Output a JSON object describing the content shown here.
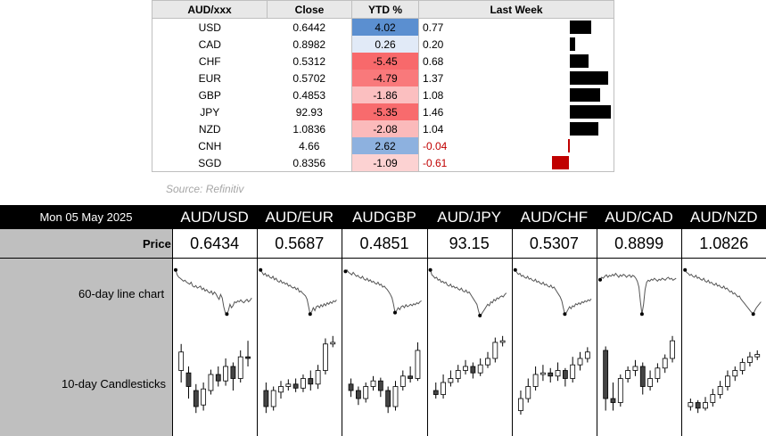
{
  "table": {
    "headers": [
      "AUD/xxx",
      "Close",
      "YTD %",
      "Last Week"
    ],
    "rows": [
      {
        "cur": "USD",
        "close": "0.6442",
        "ytd": "4.02",
        "lw": "0.77"
      },
      {
        "cur": "CAD",
        "close": "0.8982",
        "ytd": "0.26",
        "lw": "0.20"
      },
      {
        "cur": "CHF",
        "close": "0.5312",
        "ytd": "-5.45",
        "lw": "0.68"
      },
      {
        "cur": "EUR",
        "close": "0.5702",
        "ytd": "-4.79",
        "lw": "1.37"
      },
      {
        "cur": "GBP",
        "close": "0.4853",
        "ytd": "-1.86",
        "lw": "1.08"
      },
      {
        "cur": "JPY",
        "close": "92.93",
        "ytd": "-5.35",
        "lw": "1.46"
      },
      {
        "cur": "NZD",
        "close": "1.0836",
        "ytd": "-2.08",
        "lw": "1.04"
      },
      {
        "cur": "CNH",
        "close": "4.66",
        "ytd": "2.62",
        "lw": "-0.04"
      },
      {
        "cur": "SGD",
        "close": "0.8356",
        "ytd": "-1.09",
        "lw": "-0.61"
      }
    ],
    "colors": {
      "positive_strong": "#5b8fd0",
      "negative_strong": "#f8696b",
      "bar_positive": "#000000",
      "bar_negative": "#c00000"
    }
  },
  "source": "Source: Refinitiv",
  "panel": {
    "date": "Mon 05 May 2025",
    "pairs": [
      "AUD/USD",
      "AUD/EUR",
      "AUDGBP",
      "AUD/JPY",
      "AUD/CHF",
      "AUD/CAD",
      "AUD/NZD"
    ],
    "prices": [
      "0.6434",
      "0.5687",
      "0.4851",
      "93.15",
      "0.5307",
      "0.8899",
      "1.0826"
    ],
    "row_labels": {
      "price": "Price",
      "line": "60-day line chart",
      "candle": "10-day Candlesticks"
    }
  },
  "chart_data": [
    {
      "type": "bar",
      "title": "Last Week",
      "categories": [
        "USD",
        "CAD",
        "CHF",
        "EUR",
        "GBP",
        "JPY",
        "NZD",
        "CNH",
        "SGD"
      ],
      "values": [
        0.77,
        0.2,
        0.68,
        1.37,
        1.08,
        1.46,
        1.04,
        -0.04,
        -0.61
      ]
    },
    {
      "type": "line",
      "title": "60-day line chart",
      "series": [
        {
          "name": "AUD/USD",
          "values": [
            0.95,
            0.85,
            0.8,
            0.78,
            0.75,
            0.72,
            0.74,
            0.7,
            0.68,
            0.66,
            0.7,
            0.62,
            0.6,
            0.63,
            0.58,
            0.6,
            0.62,
            0.55,
            0.58,
            0.52,
            0.55,
            0.5,
            0.48,
            0.52,
            0.45,
            0.5,
            0.46,
            0.4,
            0.35,
            0.45,
            0.38,
            0.2,
            0.08,
            0.05,
            0.12,
            0.25,
            0.18,
            0.22,
            0.3,
            0.28,
            0.32,
            0.3,
            0.34,
            0.3,
            0.28,
            0.32,
            0.35,
            0.3,
            0.33,
            0.38
          ]
        },
        {
          "name": "AUD/EUR",
          "values": [
            0.95,
            0.9,
            0.85,
            0.88,
            0.82,
            0.85,
            0.8,
            0.78,
            0.82,
            0.75,
            0.78,
            0.72,
            0.7,
            0.74,
            0.68,
            0.7,
            0.66,
            0.68,
            0.62,
            0.64,
            0.6,
            0.58,
            0.6,
            0.55,
            0.58,
            0.5,
            0.52,
            0.48,
            0.45,
            0.42,
            0.35,
            0.2,
            0.05,
            0.1,
            0.18,
            0.12,
            0.2,
            0.22,
            0.18,
            0.24,
            0.2,
            0.26,
            0.22,
            0.28,
            0.25,
            0.3,
            0.27,
            0.32,
            0.3,
            0.34
          ]
        },
        {
          "name": "AUDGBP",
          "values": [
            0.92,
            0.95,
            0.9,
            0.88,
            0.85,
            0.9,
            0.86,
            0.82,
            0.84,
            0.8,
            0.78,
            0.82,
            0.76,
            0.74,
            0.78,
            0.72,
            0.75,
            0.7,
            0.72,
            0.68,
            0.66,
            0.7,
            0.64,
            0.66,
            0.6,
            0.62,
            0.58,
            0.55,
            0.5,
            0.45,
            0.38,
            0.25,
            0.08,
            0.12,
            0.18,
            0.14,
            0.2,
            0.22,
            0.18,
            0.24,
            0.2,
            0.22,
            0.25,
            0.22,
            0.26,
            0.24,
            0.28,
            0.26,
            0.3,
            0.32
          ]
        },
        {
          "name": "AUD/JPY",
          "values": [
            0.95,
            0.85,
            0.82,
            0.78,
            0.8,
            0.74,
            0.76,
            0.7,
            0.72,
            0.68,
            0.7,
            0.64,
            0.62,
            0.66,
            0.6,
            0.62,
            0.58,
            0.6,
            0.56,
            0.54,
            0.58,
            0.52,
            0.5,
            0.54,
            0.48,
            0.5,
            0.45,
            0.4,
            0.35,
            0.3,
            0.25,
            0.12,
            0.02,
            0.05,
            0.1,
            0.15,
            0.2,
            0.25,
            0.22,
            0.3,
            0.28,
            0.35,
            0.32,
            0.38,
            0.36,
            0.4,
            0.42,
            0.4,
            0.45,
            0.48
          ]
        },
        {
          "name": "AUD/CHF",
          "values": [
            0.95,
            0.9,
            0.86,
            0.88,
            0.82,
            0.84,
            0.8,
            0.78,
            0.82,
            0.76,
            0.78,
            0.74,
            0.72,
            0.76,
            0.7,
            0.72,
            0.68,
            0.66,
            0.7,
            0.64,
            0.66,
            0.62,
            0.6,
            0.64,
            0.58,
            0.6,
            0.55,
            0.5,
            0.45,
            0.4,
            0.32,
            0.18,
            0.05,
            0.08,
            0.14,
            0.2,
            0.16,
            0.22,
            0.2,
            0.26,
            0.24,
            0.28,
            0.25,
            0.3,
            0.28,
            0.32,
            0.3,
            0.34,
            0.32,
            0.36
          ]
        },
        {
          "name": "AUD/CAD",
          "values": [
            0.75,
            0.8,
            0.78,
            0.82,
            0.85,
            0.8,
            0.84,
            0.82,
            0.86,
            0.83,
            0.88,
            0.84,
            0.8,
            0.85,
            0.82,
            0.86,
            0.84,
            0.8,
            0.83,
            0.85,
            0.8,
            0.84,
            0.82,
            0.78,
            0.72,
            0.6,
            0.3,
            0.05,
            0.25,
            0.55,
            0.7,
            0.74,
            0.72,
            0.76,
            0.74,
            0.78,
            0.75,
            0.72,
            0.76,
            0.74,
            0.78,
            0.76,
            0.74,
            0.78,
            0.8,
            0.76,
            0.78,
            0.74,
            0.76,
            0.78
          ]
        },
        {
          "name": "AUD/NZD",
          "values": [
            0.95,
            0.9,
            0.88,
            0.84,
            0.86,
            0.82,
            0.8,
            0.84,
            0.78,
            0.8,
            0.76,
            0.74,
            0.78,
            0.72,
            0.7,
            0.74,
            0.68,
            0.7,
            0.66,
            0.64,
            0.68,
            0.62,
            0.64,
            0.6,
            0.58,
            0.62,
            0.56,
            0.58,
            0.54,
            0.5,
            0.52,
            0.46,
            0.48,
            0.44,
            0.4,
            0.42,
            0.36,
            0.32,
            0.28,
            0.24,
            0.2,
            0.16,
            0.12,
            0.08,
            0.05,
            0.12,
            0.18,
            0.22,
            0.26,
            0.3
          ]
        }
      ]
    },
    {
      "type": "candlestick",
      "title": "10-day Candlesticks",
      "series": [
        {
          "name": "AUD/USD",
          "candles": [
            [
              0.55,
              0.78,
              0.4,
              0.88
            ],
            [
              0.52,
              0.35,
              0.2,
              0.6
            ],
            [
              0.3,
              0.1,
              0.02,
              0.38
            ],
            [
              0.12,
              0.32,
              0.05,
              0.4
            ],
            [
              0.3,
              0.5,
              0.25,
              0.56
            ],
            [
              0.5,
              0.42,
              0.35,
              0.6
            ],
            [
              0.42,
              0.6,
              0.36,
              0.7
            ],
            [
              0.6,
              0.45,
              0.3,
              0.65
            ],
            [
              0.45,
              0.72,
              0.4,
              0.8
            ],
            [
              0.72,
              0.7,
              0.6,
              0.92
            ]
          ]
        },
        {
          "name": "AUD/EUR",
          "candles": [
            [
              0.3,
              0.1,
              0.02,
              0.4
            ],
            [
              0.1,
              0.3,
              0.05,
              0.35
            ],
            [
              0.28,
              0.35,
              0.2,
              0.42
            ],
            [
              0.35,
              0.38,
              0.3,
              0.44
            ],
            [
              0.38,
              0.33,
              0.28,
              0.45
            ],
            [
              0.33,
              0.45,
              0.28,
              0.5
            ],
            [
              0.45,
              0.38,
              0.3,
              0.55
            ],
            [
              0.38,
              0.55,
              0.32,
              0.62
            ],
            [
              0.55,
              0.88,
              0.5,
              0.95
            ],
            [
              0.88,
              0.9,
              0.84,
              0.98
            ]
          ]
        },
        {
          "name": "AUDGBP",
          "candles": [
            [
              0.38,
              0.3,
              0.22,
              0.45
            ],
            [
              0.3,
              0.2,
              0.12,
              0.35
            ],
            [
              0.2,
              0.35,
              0.15,
              0.4
            ],
            [
              0.35,
              0.42,
              0.3,
              0.48
            ],
            [
              0.42,
              0.3,
              0.22,
              0.46
            ],
            [
              0.3,
              0.1,
              0.02,
              0.35
            ],
            [
              0.1,
              0.35,
              0.05,
              0.42
            ],
            [
              0.35,
              0.48,
              0.3,
              0.55
            ],
            [
              0.48,
              0.45,
              0.4,
              0.6
            ],
            [
              0.45,
              0.8,
              0.42,
              0.9
            ]
          ]
        },
        {
          "name": "AUD/JPY",
          "candles": [
            [
              0.3,
              0.25,
              0.2,
              0.4
            ],
            [
              0.25,
              0.4,
              0.2,
              0.5
            ],
            [
              0.4,
              0.45,
              0.35,
              0.55
            ],
            [
              0.45,
              0.55,
              0.4,
              0.62
            ],
            [
              0.55,
              0.6,
              0.5,
              0.68
            ],
            [
              0.6,
              0.52,
              0.45,
              0.65
            ],
            [
              0.52,
              0.62,
              0.48,
              0.7
            ],
            [
              0.62,
              0.7,
              0.58,
              0.78
            ],
            [
              0.7,
              0.9,
              0.65,
              0.96
            ],
            [
              0.9,
              0.92,
              0.85,
              0.98
            ]
          ]
        },
        {
          "name": "AUD/CHF",
          "candles": [
            [
              0.05,
              0.2,
              0.0,
              0.3
            ],
            [
              0.2,
              0.35,
              0.15,
              0.45
            ],
            [
              0.35,
              0.5,
              0.3,
              0.6
            ],
            [
              0.5,
              0.52,
              0.42,
              0.62
            ],
            [
              0.52,
              0.48,
              0.4,
              0.58
            ],
            [
              0.48,
              0.55,
              0.42,
              0.65
            ],
            [
              0.55,
              0.45,
              0.35,
              0.58
            ],
            [
              0.45,
              0.62,
              0.4,
              0.72
            ],
            [
              0.62,
              0.7,
              0.55,
              0.78
            ],
            [
              0.7,
              0.78,
              0.65,
              0.84
            ]
          ]
        },
        {
          "name": "AUD/CAD",
          "candles": [
            [
              0.8,
              0.2,
              0.05,
              0.85
            ],
            [
              0.2,
              0.15,
              0.05,
              0.4
            ],
            [
              0.15,
              0.45,
              0.1,
              0.5
            ],
            [
              0.45,
              0.55,
              0.4,
              0.6
            ],
            [
              0.55,
              0.6,
              0.48,
              0.68
            ],
            [
              0.6,
              0.35,
              0.25,
              0.65
            ],
            [
              0.35,
              0.45,
              0.3,
              0.55
            ],
            [
              0.45,
              0.58,
              0.4,
              0.64
            ],
            [
              0.58,
              0.7,
              0.52,
              0.75
            ],
            [
              0.7,
              0.92,
              0.65,
              0.98
            ]
          ]
        },
        {
          "name": "AUD/NZD",
          "candles": [
            [
              0.1,
              0.15,
              0.05,
              0.2
            ],
            [
              0.15,
              0.08,
              0.02,
              0.18
            ],
            [
              0.08,
              0.15,
              0.05,
              0.22
            ],
            [
              0.15,
              0.25,
              0.1,
              0.32
            ],
            [
              0.25,
              0.35,
              0.2,
              0.42
            ],
            [
              0.35,
              0.48,
              0.3,
              0.55
            ],
            [
              0.48,
              0.55,
              0.42,
              0.6
            ],
            [
              0.55,
              0.65,
              0.5,
              0.7
            ],
            [
              0.65,
              0.72,
              0.6,
              0.78
            ],
            [
              0.72,
              0.75,
              0.68,
              0.8
            ]
          ]
        }
      ]
    }
  ]
}
